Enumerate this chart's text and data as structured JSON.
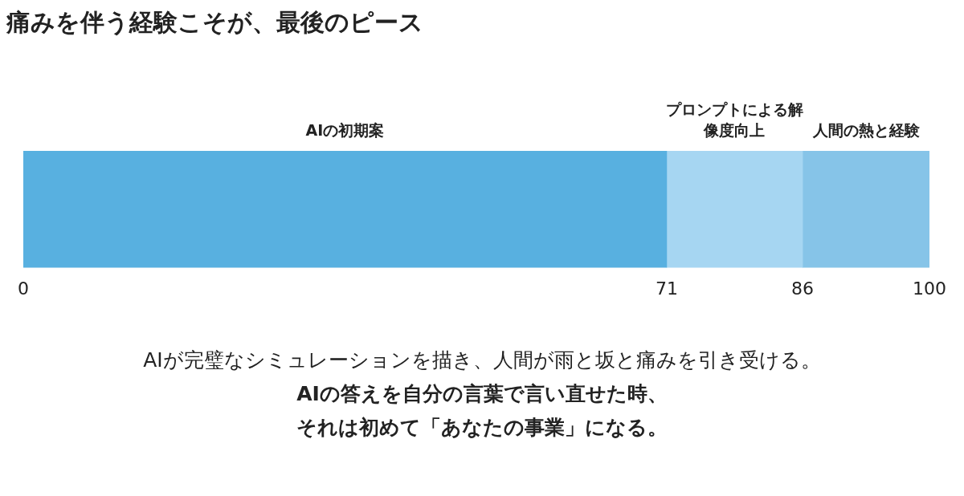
{
  "chart_data": {
    "type": "bar",
    "orientation": "horizontal",
    "stacked": true,
    "title": "痛みを伴う経験こそが、最後のピース",
    "categories": [
      null
    ],
    "series": [
      {
        "name": "AIの初期案",
        "color": "#58b0e0",
        "values": [
          71
        ]
      },
      {
        "name": "プロンプトによる解像度向上",
        "color": "#a6d6f2",
        "values": [
          15
        ]
      },
      {
        "name": "人間の熱と経験",
        "color": "#86c4e8",
        "values": [
          14
        ]
      }
    ],
    "xlim": [
      0,
      100
    ],
    "xticks": [
      0,
      71,
      86,
      100
    ],
    "grid": false,
    "legend": false,
    "annotations": [
      "AIが完璧なシミュレーションを描き、人間が雨と坂と痛みを引き受ける。",
      "AIの答えを自分の言葉で言い直せた時、",
      "それは初めて「あなたの事業」になる。"
    ]
  }
}
